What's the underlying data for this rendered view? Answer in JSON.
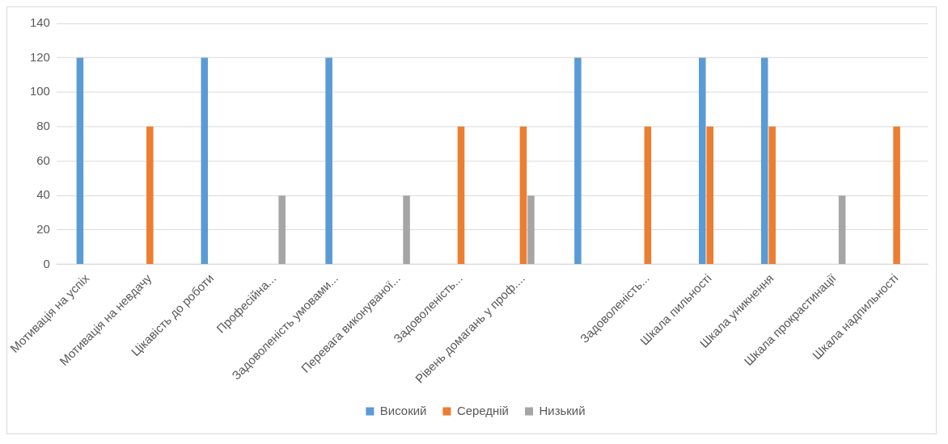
{
  "chart_data": {
    "type": "bar",
    "categories": [
      "Мотивація на успіх",
      "Мотивація на невдачу",
      "Цікавість до роботи",
      "Професійна...",
      "Задоволеність умовами...",
      "Перевага виконуваної...",
      "Задоволеність...",
      "Рівень домагань у проф....",
      null,
      "Задоволеність...",
      "Шкала пильності",
      "Шкала уникнення",
      "Шкала прокрастинації",
      "Шкала надпильності"
    ],
    "series": [
      {
        "name": "Високий",
        "color": "#5b9bd5",
        "values": [
          120,
          null,
          120,
          null,
          120,
          null,
          null,
          null,
          120,
          null,
          120,
          120,
          null,
          null
        ]
      },
      {
        "name": "Середній",
        "color": "#ed7d31",
        "values": [
          null,
          80,
          null,
          null,
          null,
          null,
          80,
          80,
          null,
          80,
          80,
          80,
          null,
          80
        ]
      },
      {
        "name": "Низький",
        "color": "#a5a5a5",
        "values": [
          null,
          null,
          null,
          40,
          null,
          40,
          null,
          40,
          null,
          null,
          null,
          null,
          40,
          null
        ]
      }
    ],
    "ylim": [
      0,
      140
    ],
    "yticks": [
      0,
      20,
      40,
      60,
      80,
      100,
      120,
      140
    ],
    "grid": "y",
    "legend": "bottom"
  }
}
